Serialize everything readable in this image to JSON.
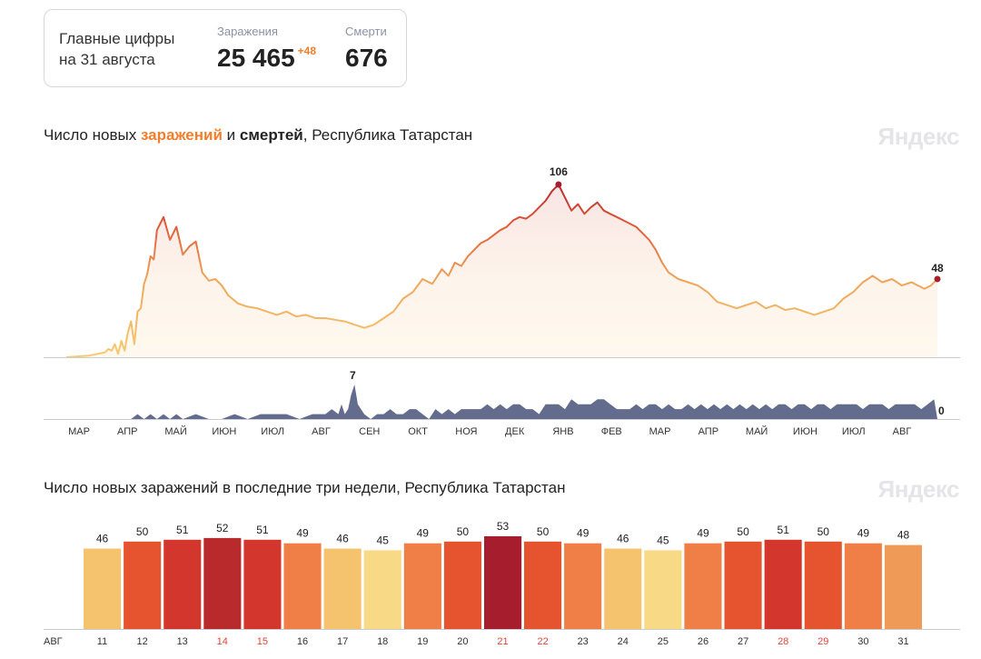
{
  "summary": {
    "title_line1": "Главные цифры",
    "title_line2": "на 31 августа",
    "infections_label": "Заражения",
    "infections_value": "25 465",
    "infections_delta": "+48",
    "deaths_label": "Смерти",
    "deaths_value": "676"
  },
  "brand": "Яндекс",
  "colors": {
    "low": "#f6cb72",
    "mid": "#ef7e47",
    "high": "#d3362c",
    "peak": "#a61e2e",
    "deaths": "#636c8c",
    "axis_red": "#e0453c"
  },
  "chart_data": [
    {
      "type": "area",
      "title": {
        "prefix": "Число новых ",
        "infections_word": "заражений",
        "joiner": " и ",
        "deaths_word": "смертей",
        "suffix": ", Республика Татарстан"
      },
      "x_ticks": [
        "МАР",
        "АПР",
        "МАЙ",
        "ИЮН",
        "ИЮЛ",
        "АВГ",
        "СЕН",
        "ОКТ",
        "НОЯ",
        "ДЕК",
        "ЯНВ",
        "ФЕВ",
        "МАР",
        "АПР",
        "МАЙ",
        "ИЮН",
        "ИЮЛ",
        "АВГ"
      ],
      "series": [
        {
          "key": "infections",
          "x": [
            0,
            14,
            24,
            26,
            28,
            30,
            32,
            34,
            36,
            38,
            40,
            42,
            44,
            46,
            48,
            50,
            52,
            54,
            56,
            60,
            64,
            68,
            72,
            76,
            80,
            84,
            88,
            92,
            96,
            100,
            106,
            112,
            118,
            124,
            130,
            136,
            142,
            148,
            154,
            160,
            166,
            172,
            178,
            184,
            190,
            196,
            202,
            208,
            214,
            220,
            226,
            232,
            236,
            240,
            244,
            248,
            252,
            256,
            260,
            264,
            268,
            272,
            276,
            280,
            284,
            288,
            292,
            296,
            300,
            304,
            308,
            312,
            316,
            320,
            324,
            328,
            332,
            336,
            340,
            344,
            348,
            352,
            356,
            360,
            364,
            368,
            372,
            378,
            384,
            390,
            396,
            402,
            408,
            414,
            420,
            426,
            432,
            438,
            444,
            450,
            456,
            462,
            468,
            474,
            480,
            486,
            492,
            498,
            504,
            510,
            516,
            522,
            526,
            530,
            534,
            538
          ],
          "y": [
            0,
            1,
            3,
            5,
            4,
            8,
            2,
            10,
            4,
            15,
            22,
            8,
            28,
            30,
            45,
            51,
            62,
            60,
            78,
            86,
            72,
            80,
            63,
            68,
            71,
            52,
            47,
            48,
            44,
            38,
            33,
            31,
            30,
            28,
            26,
            28,
            25,
            26,
            24,
            24,
            23,
            22,
            20,
            18,
            20,
            24,
            28,
            36,
            40,
            48,
            45,
            54,
            50,
            58,
            56,
            62,
            66,
            70,
            72,
            75,
            78,
            80,
            84,
            86,
            85,
            88,
            92,
            96,
            102,
            106,
            98,
            90,
            94,
            88,
            92,
            95,
            90,
            88,
            86,
            84,
            82,
            80,
            76,
            72,
            66,
            58,
            52,
            48,
            46,
            44,
            40,
            34,
            32,
            30,
            32,
            34,
            30,
            32,
            29,
            30,
            28,
            26,
            28,
            30,
            36,
            40,
            46,
            50,
            46,
            48,
            44,
            46,
            44,
            42,
            44,
            48
          ]
        },
        {
          "key": "deaths",
          "x": [
            0,
            40,
            44,
            48,
            52,
            56,
            60,
            64,
            68,
            72,
            80,
            88,
            96,
            104,
            112,
            120,
            128,
            136,
            144,
            152,
            160,
            164,
            168,
            170,
            172,
            174,
            176,
            178,
            180,
            184,
            188,
            192,
            196,
            200,
            204,
            208,
            212,
            216,
            220,
            224,
            228,
            232,
            236,
            240,
            244,
            248,
            252,
            256,
            260,
            264,
            268,
            272,
            276,
            280,
            284,
            288,
            292,
            296,
            300,
            304,
            308,
            312,
            316,
            320,
            324,
            328,
            332,
            336,
            340,
            344,
            348,
            352,
            356,
            360,
            364,
            368,
            372,
            376,
            380,
            384,
            388,
            392,
            396,
            400,
            404,
            408,
            412,
            416,
            420,
            424,
            428,
            432,
            436,
            440,
            444,
            448,
            452,
            456,
            460,
            464,
            468,
            472,
            476,
            480,
            484,
            488,
            492,
            496,
            500,
            504,
            508,
            512,
            516,
            520,
            524,
            528,
            532,
            536,
            538
          ],
          "y": [
            0,
            0,
            1,
            0,
            1,
            0,
            1,
            0,
            1,
            0,
            1,
            0,
            0,
            1,
            0,
            1,
            1,
            1,
            0,
            1,
            1,
            2,
            1,
            3,
            1,
            2,
            5,
            7,
            3,
            1,
            0,
            1,
            1,
            2,
            1,
            1,
            2,
            2,
            1,
            0,
            2,
            1,
            2,
            1,
            2,
            2,
            2,
            2,
            3,
            2,
            3,
            2,
            3,
            3,
            2,
            2,
            1,
            3,
            3,
            3,
            2,
            4,
            3,
            3,
            3,
            4,
            4,
            3,
            2,
            2,
            2,
            3,
            2,
            3,
            3,
            2,
            3,
            2,
            2,
            3,
            2,
            3,
            2,
            3,
            2,
            3,
            2,
            3,
            2,
            3,
            2,
            3,
            2,
            3,
            3,
            2,
            3,
            3,
            2,
            3,
            3,
            2,
            3,
            3,
            3,
            3,
            2,
            3,
            3,
            3,
            2,
            3,
            3,
            3,
            3,
            2,
            3,
            4,
            0
          ]
        }
      ],
      "peak_label": "106",
      "end_label": "48",
      "deaths_peak_label": "7",
      "deaths_end_label": "0"
    },
    {
      "type": "bar",
      "title": "Число новых заражений в последние три недели, Республика Татарстан",
      "month_label": "АВГ",
      "categories": [
        "11",
        "12",
        "13",
        "14",
        "15",
        "16",
        "17",
        "18",
        "19",
        "20",
        "21",
        "22",
        "23",
        "24",
        "25",
        "26",
        "27",
        "28",
        "29",
        "30",
        "31"
      ],
      "values": [
        46,
        50,
        51,
        52,
        51,
        49,
        46,
        45,
        49,
        50,
        53,
        50,
        49,
        46,
        45,
        49,
        50,
        51,
        50,
        49,
        48
      ],
      "value_labels": [
        "46",
        "50",
        "51",
        "52",
        "51",
        "49",
        "46",
        "45",
        "49",
        "50",
        "53",
        "50",
        "49",
        "46",
        "45",
        "49",
        "50",
        "51",
        "50",
        "49",
        "48"
      ],
      "weekend": [
        false,
        false,
        false,
        true,
        true,
        false,
        false,
        false,
        false,
        false,
        true,
        true,
        false,
        false,
        false,
        false,
        false,
        true,
        true,
        false,
        false
      ]
    }
  ]
}
